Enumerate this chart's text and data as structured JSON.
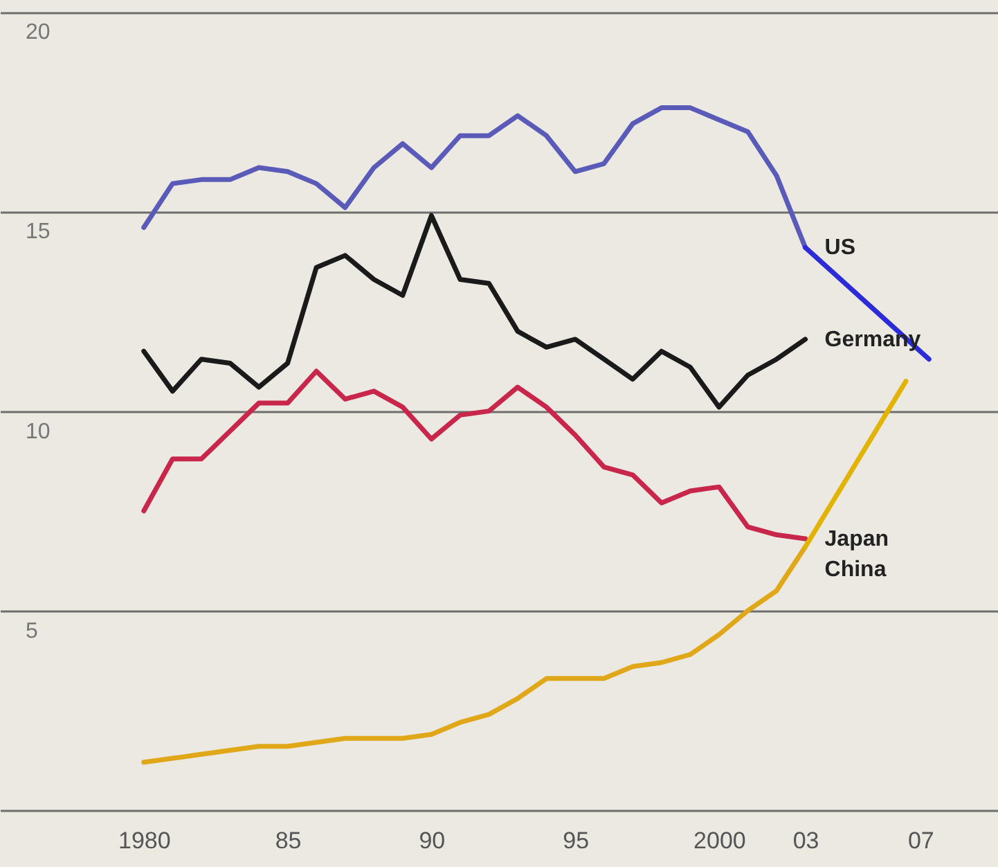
{
  "chart_data": {
    "type": "line",
    "x": [
      1980,
      1981,
      1982,
      1983,
      1984,
      1985,
      1986,
      1987,
      1988,
      1989,
      1990,
      1991,
      1992,
      1993,
      1994,
      1995,
      1996,
      1997,
      1998,
      1999,
      2000,
      2001,
      2002,
      2003
    ],
    "series": [
      {
        "name": "US",
        "color": "#5a5bb8",
        "values": [
          14.6,
          15.7,
          15.8,
          15.8,
          16.1,
          16.0,
          15.7,
          15.1,
          16.1,
          16.7,
          16.1,
          16.9,
          16.9,
          17.4,
          16.9,
          16.0,
          16.2,
          17.2,
          17.6,
          17.6,
          17.3,
          17.0,
          15.9,
          14.1
        ]
      },
      {
        "name": "Germany",
        "color": "#1a1a1a",
        "values": [
          11.5,
          10.5,
          11.3,
          11.2,
          10.6,
          11.2,
          13.6,
          13.9,
          13.3,
          12.9,
          14.9,
          13.3,
          13.2,
          12.0,
          11.6,
          11.8,
          11.3,
          10.8,
          11.5,
          11.1,
          10.1,
          10.9,
          11.3,
          11.8
        ]
      },
      {
        "name": "Japan",
        "color": "#c8264b",
        "values": [
          7.5,
          8.8,
          8.8,
          9.5,
          10.2,
          10.2,
          11.0,
          10.3,
          10.5,
          10.1,
          9.3,
          9.9,
          10.0,
          10.6,
          10.1,
          9.4,
          8.6,
          8.4,
          7.7,
          8.0,
          8.1,
          7.1,
          6.9,
          6.8
        ]
      },
      {
        "name": "China",
        "color": "#e0a818",
        "values": [
          1.2,
          1.3,
          1.4,
          1.5,
          1.6,
          1.6,
          1.7,
          1.8,
          1.8,
          1.8,
          1.9,
          2.2,
          2.4,
          2.8,
          3.3,
          3.3,
          3.3,
          3.6,
          3.7,
          3.9,
          4.4,
          5.0,
          5.5,
          6.6
        ]
      },
      {
        "color": "#2b2bd8",
        "x": [
          2003,
          2007.3
        ],
        "values": [
          14.1,
          11.3
        ]
      },
      {
        "color": "#e2b400",
        "x": [
          2003,
          2006.5
        ],
        "values": [
          6.6,
          10.75
        ]
      }
    ],
    "xlim": [
      1975,
      2009.7
    ],
    "xticks": [
      {
        "value": 1980,
        "label": "1980"
      },
      {
        "value": 1985,
        "label": "85"
      },
      {
        "value": 1990,
        "label": "90"
      },
      {
        "value": 1995,
        "label": "95"
      },
      {
        "value": 2000,
        "label": "2000"
      },
      {
        "value": 2003,
        "label": "03"
      },
      {
        "value": 2007,
        "label": "07"
      }
    ],
    "ylim": [
      0,
      20.3
    ],
    "yticks": [
      {
        "value": 0,
        "label": null
      },
      5,
      10,
      15,
      20
    ],
    "grid": "y",
    "line_style": "solid"
  }
}
